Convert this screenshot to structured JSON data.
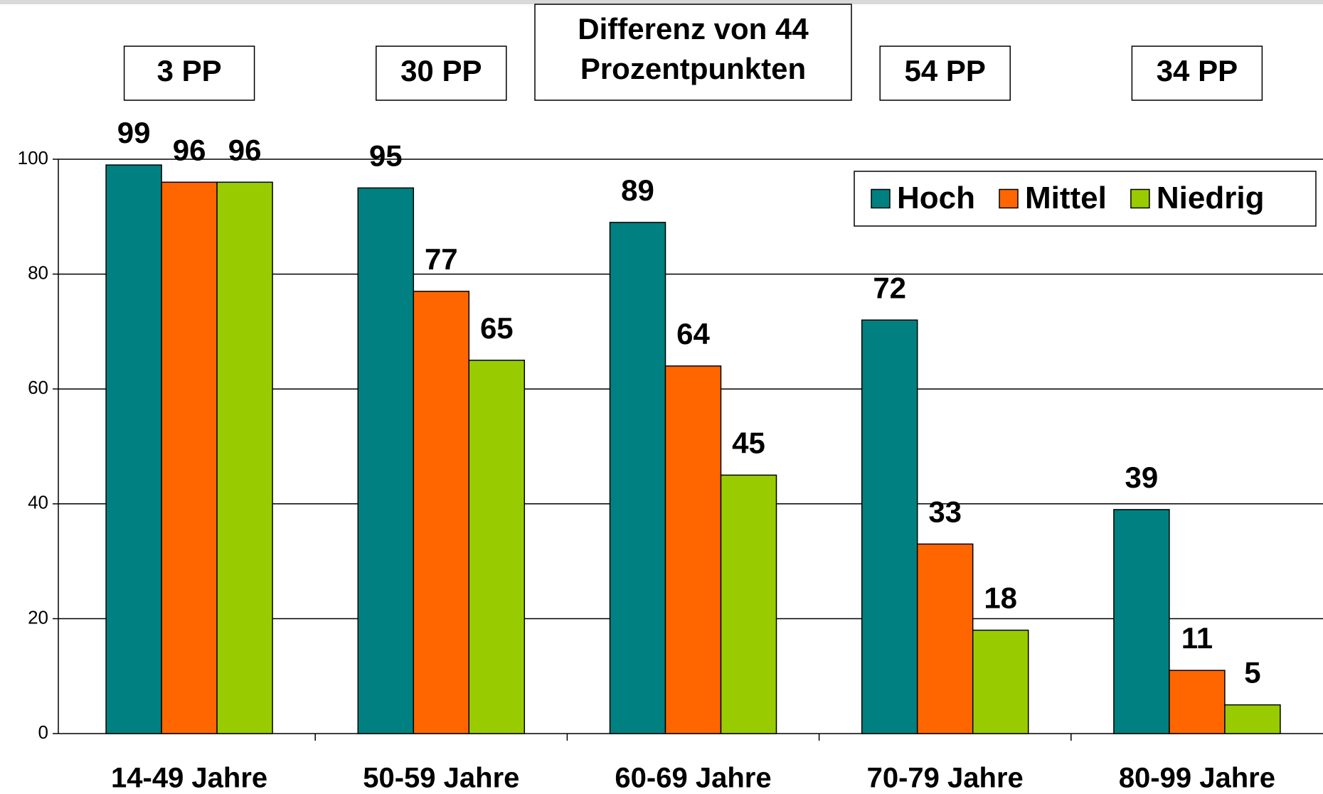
{
  "chart_data": {
    "type": "bar",
    "categories": [
      "14-49 Jahre",
      "50-59 Jahre",
      "60-69 Jahre",
      "70-79 Jahre",
      "80-99 Jahre"
    ],
    "series": [
      {
        "name": "Hoch",
        "color": "#008080",
        "values": [
          99,
          95,
          89,
          72,
          39
        ]
      },
      {
        "name": "Mittel",
        "color": "#ff6600",
        "values": [
          96,
          77,
          64,
          33,
          11
        ]
      },
      {
        "name": "Niedrig",
        "color": "#99cc00",
        "values": [
          96,
          65,
          45,
          18,
          5
        ]
      }
    ],
    "annotations": [
      [
        "3 PP"
      ],
      [
        "30 PP"
      ],
      [
        "Differenz von 44",
        "Prozentpunkten"
      ],
      [
        "54 PP"
      ],
      [
        "34 PP"
      ]
    ],
    "ylim": [
      0,
      100
    ],
    "yticks": [
      0,
      20,
      40,
      60,
      80,
      100
    ],
    "grid": true,
    "legend": "upper right"
  }
}
